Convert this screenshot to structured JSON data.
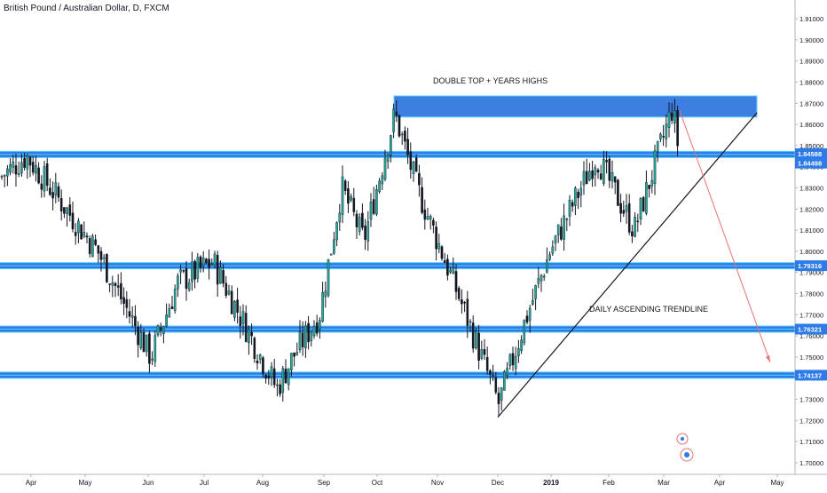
{
  "chart_data": {
    "type": "candlestick",
    "title": "British Pound / Australian Dollar, D, FXCM",
    "x_axis_labels": [
      "Apr",
      "May",
      "Jun",
      "Jul",
      "Aug",
      "Sep",
      "Oct",
      "Nov",
      "Dec",
      "2019",
      "Feb",
      "Mar",
      "Apr",
      "May"
    ],
    "y_ticks": [
      "1.91000",
      "1.90000",
      "1.89000",
      "1.88000",
      "1.87000",
      "1.86000",
      "1.85000",
      "1.84000",
      "1.83000",
      "1.82000",
      "1.81000",
      "1.80000",
      "1.79000",
      "1.78000",
      "1.77000",
      "1.76000",
      "1.75000",
      "1.74000",
      "1.73000",
      "1.72000",
      "1.71000",
      "1.70000"
    ],
    "ylim": [
      1.6945,
      1.9155
    ],
    "grid": false,
    "price_series": [
      {
        "month": "Apr",
        "close": 1.835
      },
      {
        "month": "May",
        "close": 1.845
      },
      {
        "month": "May",
        "close": 1.8
      },
      {
        "month": "Jun",
        "close": 1.75
      },
      {
        "month": "Jun",
        "close": 1.785
      },
      {
        "month": "Jul",
        "close": 1.795
      },
      {
        "month": "Jul",
        "close": 1.77
      },
      {
        "month": "Aug",
        "close": 1.735
      },
      {
        "month": "Aug",
        "close": 1.75
      },
      {
        "month": "Sep",
        "close": 1.77
      },
      {
        "month": "Sep",
        "close": 1.83
      },
      {
        "month": "Oct",
        "close": 1.805
      },
      {
        "month": "Oct",
        "close": 1.865
      },
      {
        "month": "Nov",
        "close": 1.83
      },
      {
        "month": "Nov",
        "close": 1.77
      },
      {
        "month": "Dec",
        "close": 1.728
      },
      {
        "month": "Dec",
        "close": 1.765
      },
      {
        "month": "2019",
        "close": 1.8
      },
      {
        "month": "Feb",
        "close": 1.845
      },
      {
        "month": "Feb",
        "close": 1.81
      },
      {
        "month": "Mar",
        "close": 1.868
      },
      {
        "month": "Mar",
        "close": 1.847
      }
    ],
    "zones": [
      {
        "name": "double-top",
        "from": 1.8635,
        "to": 1.8735,
        "color": "#3d7fe0"
      },
      {
        "name": "level",
        "value": 1.8458,
        "color": "#2c7be8"
      },
      {
        "name": "level",
        "value": 1.7932,
        "color": "#2c7be8"
      },
      {
        "name": "level",
        "value": 1.7632,
        "color": "#2c7be8"
      },
      {
        "name": "level",
        "value": 1.7414,
        "color": "#2c7be8"
      }
    ],
    "price_labels": [
      {
        "text": "1.84588",
        "color": "#2c7be8"
      },
      {
        "text": "1.84498",
        "color": "#2c7be8"
      },
      {
        "text": "1.79316",
        "color": "#2c7be8"
      },
      {
        "text": "1.76321",
        "color": "#2c7be8"
      },
      {
        "text": "1.74137",
        "color": "#2c7be8"
      }
    ],
    "annotations": [
      {
        "text": "DOUBLE TOP + YEARS HIGHS"
      },
      {
        "text": "DAILY ASCENDING TRENDLINE"
      }
    ],
    "trendline": {
      "from_month": "Dec",
      "from_value": 1.7215,
      "to_month": "Mar",
      "to_value": 1.8655,
      "color": "#131722"
    },
    "projection": {
      "from_month": "Mar",
      "from_value": 1.8665,
      "to_month": "Apr",
      "to_value": 1.7475,
      "color": "#e57373"
    }
  },
  "colors": {
    "up": "#26a69a",
    "down": "#131722",
    "accent": "#2c7be8"
  },
  "icons": [
    "dividends-icon",
    "earnings-icon"
  ]
}
